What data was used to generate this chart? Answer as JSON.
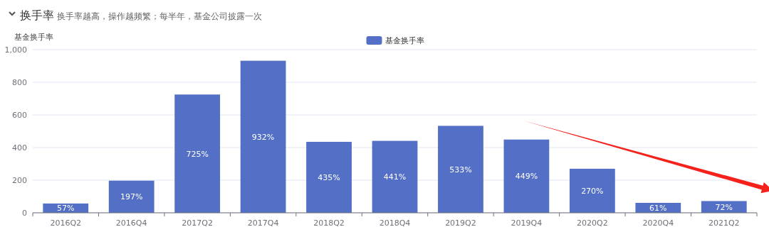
{
  "chart_data": {
    "type": "bar",
    "title": "换手率",
    "subtitle": "换手率越高，操作越频繁；每半年，基金公司披露一次",
    "ylabel": "基金换手率",
    "categories": [
      "2016Q2",
      "2016Q4",
      "2017Q2",
      "2017Q4",
      "2018Q2",
      "2018Q4",
      "2019Q2",
      "2019Q4",
      "2020Q2",
      "2020Q4",
      "2021Q2"
    ],
    "series": [
      {
        "name": "基金换手率",
        "color": "#5470c6",
        "values": [
          57,
          197,
          725,
          932,
          435,
          441,
          533,
          449,
          270,
          61,
          72
        ],
        "value_labels": [
          "57%",
          "197%",
          "725%",
          "932%",
          "435%",
          "441%",
          "533%",
          "449%",
          "270%",
          "61%",
          "72%"
        ]
      }
    ],
    "ylim": [
      0,
      1000
    ],
    "yticks": [
      0,
      200,
      400,
      600,
      800,
      {
        "value": 1000,
        "label": "1,000"
      }
    ],
    "grid": "y",
    "legend": "top"
  }
}
